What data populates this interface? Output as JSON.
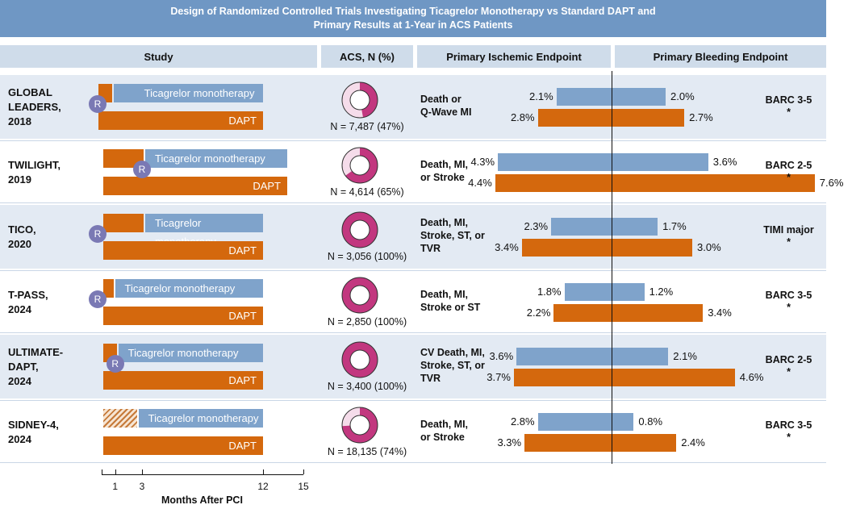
{
  "title": "Design of Randomized Controlled Trials Investigating Ticagrelor Monotherapy vs Standard DAPT and Primary Results at 1-Year in ACS Patients",
  "title_line1": "Design of Randomized Controlled Trials Investigating Ticagrelor Monotherapy vs Standard DAPT and",
  "title_line2": "Primary Results at 1-Year in ACS Patients",
  "columns": {
    "study": "Study",
    "acs": "ACS, N (%)",
    "ischemic": "Primary Ischemic Endpoint",
    "bleeding": "Primary Bleeding Endpoint"
  },
  "mono_label": "Ticagrelor monotherapy",
  "dapt_label": "DAPT",
  "rand_label": "R",
  "colors": {
    "header_bg": "#6f97c4",
    "subheader_bg": "#cfdcea",
    "row_bg_alt": "#e3eaf3",
    "monotherapy": "#7fa3cb",
    "dapt": "#d4680d",
    "donut_fill": "#c2377f",
    "donut_rest": "#f5dcea",
    "randomization": "#7a79b4"
  },
  "axis": {
    "title": "Months After PCI",
    "ticks": [
      "1",
      "3",
      "12",
      "15"
    ],
    "tick_values": [
      1,
      3,
      12,
      15
    ],
    "range": [
      0,
      15
    ]
  },
  "chart_data": {
    "type": "bar",
    "units": "% at 1 year",
    "trials": [
      {
        "name": "GLOBAL LEADERS, 2018",
        "name_lines": [
          "GLOBAL",
          "LEADERS,",
          "2018"
        ],
        "dapt_months": 1,
        "hatched": false,
        "randomization_month": 0,
        "n_label": "N = 7,487 (47%)",
        "acs_n": 7487,
        "acs_pct": 47,
        "ischemic_endpoint": [
          "Death or",
          "Q-Wave MI"
        ],
        "ischemic_mono": 2.1,
        "ischemic_dapt": 2.8,
        "ischemic_mono_label": "2.1%",
        "ischemic_dapt_label": "2.8%",
        "bleeding_mono": 2.0,
        "bleeding_dapt": 2.7,
        "bleeding_mono_label": "2.0%",
        "bleeding_dapt_label": "2.7%",
        "bleeding_endpoint": "BARC 3-5",
        "bleeding_mark": "*"
      },
      {
        "name": "TWILIGHT, 2019",
        "name_lines": [
          "TWILIGHT,",
          "2019"
        ],
        "dapt_months": 3,
        "hatched": false,
        "randomization_month": 3,
        "n_label": "N = 4,614 (65%)",
        "acs_n": 4614,
        "acs_pct": 65,
        "ischemic_endpoint": [
          "Death, MI,",
          "or Stroke"
        ],
        "ischemic_mono": 4.3,
        "ischemic_dapt": 4.4,
        "ischemic_mono_label": "4.3%",
        "ischemic_dapt_label": "4.4%",
        "bleeding_mono": 3.6,
        "bleeding_dapt": 7.6,
        "bleeding_mono_label": "3.6%",
        "bleeding_dapt_label": "7.6%",
        "bleeding_endpoint": "BARC 2-5",
        "bleeding_mark": "*"
      },
      {
        "name": "TICO, 2020",
        "name_lines": [
          "TICO,",
          "2020"
        ],
        "dapt_months": 3,
        "hatched": false,
        "randomization_month": 0,
        "n_label": "N = 3,056 (100%)",
        "acs_n": 3056,
        "acs_pct": 100,
        "ischemic_endpoint": [
          "Death, MI,",
          "Stroke, ST, or",
          "TVR"
        ],
        "ischemic_mono": 2.3,
        "ischemic_dapt": 3.4,
        "ischemic_mono_label": "2.3%",
        "ischemic_dapt_label": "3.4%",
        "bleeding_mono": 1.7,
        "bleeding_dapt": 3.0,
        "bleeding_mono_label": "1.7%",
        "bleeding_dapt_label": "3.0%",
        "bleeding_endpoint": "TIMI major",
        "bleeding_mark": "*"
      },
      {
        "name": "T-PASS, 2024",
        "name_lines": [
          "T-PASS,",
          "2024"
        ],
        "dapt_months": 0.75,
        "hatched": false,
        "randomization_month": 0,
        "n_label": "N = 2,850 (100%)",
        "acs_n": 2850,
        "acs_pct": 100,
        "ischemic_endpoint": [
          "Death, MI,",
          "Stroke or ST"
        ],
        "ischemic_mono": 1.8,
        "ischemic_dapt": 2.2,
        "ischemic_mono_label": "1.8%",
        "ischemic_dapt_label": "2.2%",
        "bleeding_mono": 1.2,
        "bleeding_dapt": 3.4,
        "bleeding_mono_label": "1.2%",
        "bleeding_dapt_label": "3.4%",
        "bleeding_endpoint": "BARC 3-5",
        "bleeding_mark": "*"
      },
      {
        "name": "ULTIMATE-DAPT, 2024",
        "name_lines": [
          "ULTIMATE-",
          "DAPT,",
          "2024"
        ],
        "dapt_months": 1,
        "hatched": false,
        "randomization_month": 1,
        "n_label": "N = 3,400 (100%)",
        "acs_n": 3400,
        "acs_pct": 100,
        "ischemic_endpoint": [
          "CV Death, MI,",
          "Stroke, ST, or",
          "TVR"
        ],
        "ischemic_mono": 3.6,
        "ischemic_dapt": 3.7,
        "ischemic_mono_label": "3.6%",
        "ischemic_dapt_label": "3.7%",
        "bleeding_mono": 2.1,
        "bleeding_dapt": 4.6,
        "bleeding_mono_label": "2.1%",
        "bleeding_dapt_label": "4.6%",
        "bleeding_endpoint": "BARC 2-5",
        "bleeding_mark": "*"
      },
      {
        "name": "SIDNEY-4, 2024",
        "name_lines": [
          "SIDNEY-4,",
          "2024"
        ],
        "dapt_months": 2.5,
        "hatched": true,
        "randomization_month": null,
        "n_label": "N = 18,135 (74%)",
        "acs_n": 18135,
        "acs_pct": 74,
        "ischemic_endpoint": [
          "Death, MI,",
          "or Stroke"
        ],
        "ischemic_mono": 2.8,
        "ischemic_dapt": 3.3,
        "ischemic_mono_label": "2.8%",
        "ischemic_dapt_label": "3.3%",
        "bleeding_mono": 0.8,
        "bleeding_dapt": 2.4,
        "bleeding_mono_label": "0.8%",
        "bleeding_dapt_label": "2.4%",
        "bleeding_endpoint": "BARC 3-5",
        "bleeding_mark": "*"
      }
    ]
  }
}
